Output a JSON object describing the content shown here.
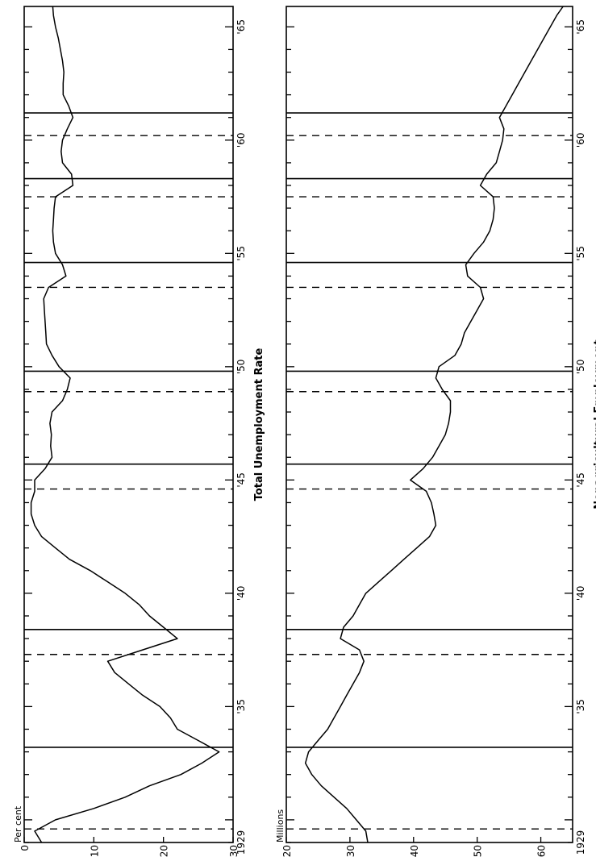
{
  "chart_data": [
    {
      "type": "line",
      "title": "Total Unemployment Rate",
      "ylabel": "Per cent",
      "ylim": [
        0,
        30
      ],
      "xlim": [
        1929,
        1965.9
      ],
      "grid": false,
      "yticks": [
        {
          "value": 0,
          "label": "0"
        },
        {
          "value": 10,
          "label": "10"
        },
        {
          "value": 20,
          "label": "20"
        },
        {
          "value": 30,
          "label": "30"
        }
      ],
      "xticks": [
        {
          "value": 1929,
          "label": "1929"
        },
        {
          "value": 1935,
          "label": "'35"
        },
        {
          "value": 1940,
          "label": "'40"
        },
        {
          "value": 1945,
          "label": "'45"
        },
        {
          "value": 1950,
          "label": "'50"
        },
        {
          "value": 1955,
          "label": "'55"
        },
        {
          "value": 1960,
          "label": "'60"
        },
        {
          "value": 1965,
          "label": "'65"
        }
      ],
      "peaks": [
        1929.6,
        1937.3,
        1944.6,
        1948.9,
        1953.5,
        1957.5,
        1960.2
      ],
      "troughs": [
        1933.2,
        1938.4,
        1945.7,
        1949.8,
        1954.6,
        1958.3,
        1961.2
      ],
      "series": [
        {
          "x": [
            1929.0,
            1929.5,
            1930.0,
            1930.5,
            1931.0,
            1931.5,
            1932.0,
            1932.5,
            1933.0,
            1933.5,
            1934.0,
            1934.5,
            1935.0,
            1935.5,
            1936.0,
            1936.5,
            1937.0,
            1937.5,
            1938.0,
            1938.5,
            1939.0,
            1939.5,
            1940.0,
            1940.5,
            1941.0,
            1941.5,
            1942.0,
            1942.5,
            1943.0,
            1943.5,
            1944.0,
            1944.5,
            1945.0,
            1945.5,
            1946.0,
            1946.5,
            1947.0,
            1947.5,
            1948.0,
            1948.5,
            1949.0,
            1949.5,
            1950.0,
            1950.5,
            1951.0,
            1951.5,
            1952.0,
            1952.5,
            1953.0,
            1953.5,
            1954.0,
            1954.5,
            1955.0,
            1955.5,
            1956.0,
            1956.5,
            1957.0,
            1957.5,
            1958.0,
            1958.5,
            1959.0,
            1959.5,
            1960.0,
            1960.5,
            1961.0,
            1961.5,
            1962.0,
            1962.5,
            1963.0,
            1963.5,
            1964.0,
            1964.5,
            1965.0,
            1965.5,
            1965.9
          ],
          "y": [
            2.5,
            1.5,
            4.5,
            10.0,
            14.5,
            18.0,
            22.5,
            25.5,
            28.0,
            25.0,
            22.0,
            21.0,
            19.5,
            17.0,
            15.0,
            13.0,
            12.0,
            17.0,
            22.0,
            20.0,
            18.0,
            16.5,
            14.5,
            12.0,
            9.5,
            6.5,
            4.5,
            2.5,
            1.5,
            1.0,
            1.0,
            1.5,
            1.5,
            3.0,
            4.0,
            3.8,
            3.9,
            3.7,
            4.0,
            5.5,
            6.2,
            6.6,
            5.0,
            4.0,
            3.2,
            3.1,
            3.0,
            2.9,
            2.8,
            3.5,
            6.0,
            5.5,
            4.5,
            4.2,
            4.1,
            4.2,
            4.3,
            4.5,
            7.0,
            6.8,
            5.5,
            5.3,
            5.5,
            6.2,
            7.0,
            6.4,
            5.6,
            5.6,
            5.7,
            5.5,
            5.2,
            4.9,
            4.5,
            4.2,
            4.1
          ]
        }
      ]
    },
    {
      "type": "line",
      "title": "Nonagricultural Employment",
      "ylabel": "Millions",
      "ylim": [
        20,
        65
      ],
      "xlim": [
        1929,
        1965.9
      ],
      "grid": false,
      "yticks": [
        {
          "value": 20,
          "label": "20"
        },
        {
          "value": 30,
          "label": "30"
        },
        {
          "value": 40,
          "label": "40"
        },
        {
          "value": 50,
          "label": "50"
        },
        {
          "value": 60,
          "label": "60"
        }
      ],
      "xticks": [
        {
          "value": 1929,
          "label": "1929"
        },
        {
          "value": 1935,
          "label": "'35"
        },
        {
          "value": 1940,
          "label": "'40"
        },
        {
          "value": 1945,
          "label": "'45"
        },
        {
          "value": 1950,
          "label": "'50"
        },
        {
          "value": 1955,
          "label": "'55"
        },
        {
          "value": 1960,
          "label": "'60"
        },
        {
          "value": 1965,
          "label": "'65"
        }
      ],
      "peaks": [
        1929.6,
        1937.3,
        1944.6,
        1948.9,
        1953.5,
        1957.5,
        1960.2
      ],
      "troughs": [
        1933.2,
        1938.4,
        1945.7,
        1949.8,
        1954.6,
        1958.3,
        1961.2
      ],
      "series": [
        {
          "x": [
            1929.0,
            1929.5,
            1930.0,
            1930.5,
            1931.0,
            1931.5,
            1932.0,
            1932.5,
            1933.0,
            1933.5,
            1934.0,
            1934.5,
            1935.0,
            1935.5,
            1936.0,
            1936.5,
            1937.0,
            1937.5,
            1938.0,
            1938.5,
            1939.0,
            1939.5,
            1940.0,
            1940.5,
            1941.0,
            1941.5,
            1942.0,
            1942.5,
            1943.0,
            1943.5,
            1944.0,
            1944.5,
            1945.0,
            1945.5,
            1946.0,
            1946.5,
            1947.0,
            1947.5,
            1948.0,
            1948.5,
            1949.0,
            1949.5,
            1950.0,
            1950.5,
            1951.0,
            1951.5,
            1952.0,
            1952.5,
            1953.0,
            1953.5,
            1954.0,
            1954.5,
            1955.0,
            1955.5,
            1956.0,
            1956.5,
            1957.0,
            1957.5,
            1958.0,
            1958.5,
            1959.0,
            1959.5,
            1960.0,
            1960.5,
            1961.0,
            1961.5,
            1962.0,
            1962.5,
            1963.0,
            1963.5,
            1964.0,
            1964.5,
            1965.0,
            1965.5,
            1965.9
          ],
          "y": [
            32.8,
            32.5,
            31.0,
            29.5,
            27.5,
            25.5,
            24.0,
            23.0,
            23.5,
            25.0,
            26.5,
            27.5,
            28.5,
            29.5,
            30.5,
            31.5,
            32.2,
            31.5,
            28.5,
            29.0,
            30.5,
            31.5,
            32.5,
            34.5,
            36.5,
            38.5,
            40.5,
            42.5,
            43.5,
            43.2,
            42.8,
            42.0,
            39.5,
            41.5,
            43.0,
            44.0,
            45.0,
            45.5,
            45.8,
            45.8,
            44.5,
            43.5,
            44.0,
            46.5,
            47.5,
            48.0,
            49.0,
            50.0,
            51.0,
            50.5,
            48.5,
            48.2,
            49.5,
            51.0,
            52.0,
            52.5,
            52.7,
            52.5,
            50.5,
            51.5,
            53.0,
            53.5,
            54.0,
            54.2,
            53.5,
            54.5,
            55.5,
            56.5,
            57.5,
            58.5,
            59.5,
            60.5,
            61.5,
            62.5,
            63.5
          ]
        }
      ]
    }
  ]
}
